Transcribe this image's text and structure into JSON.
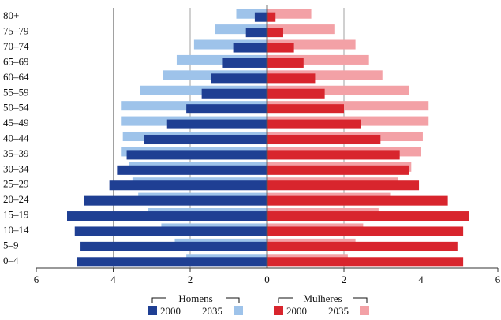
{
  "chart_data": {
    "type": "bar",
    "orientation": "horizontal",
    "categories": [
      "80+",
      "75–79",
      "70–74",
      "65–69",
      "60–64",
      "55–59",
      "50–54",
      "45–49",
      "40–44",
      "35–39",
      "30–34",
      "25–29",
      "20–24",
      "15–19",
      "10–14",
      "5–9",
      "0–4"
    ],
    "xlim": [
      -6,
      6
    ],
    "xticks": [
      6,
      4,
      2,
      0,
      2,
      4,
      6
    ],
    "grid": true,
    "legend_placement": "bottom",
    "groups": [
      {
        "name": "Homens",
        "side": "left",
        "series": [
          {
            "name": "2000",
            "color": "#1f3f93",
            "values": [
              0.32,
              0.55,
              0.88,
              1.15,
              1.45,
              1.7,
              2.1,
              2.6,
              3.2,
              3.65,
              3.9,
              4.1,
              4.75,
              5.2,
              5.0,
              4.85,
              4.95
            ]
          },
          {
            "name": "2035",
            "color": "#9ec3ea",
            "values": [
              0.8,
              1.35,
              1.9,
              2.35,
              2.7,
              3.3,
              3.8,
              3.8,
              3.75,
              3.8,
              3.6,
              3.5,
              3.35,
              3.1,
              2.75,
              2.4,
              2.1
            ]
          }
        ]
      },
      {
        "name": "Mulheres",
        "side": "right",
        "series": [
          {
            "name": "2000",
            "color": "#d8252d",
            "values": [
              0.22,
              0.42,
              0.7,
              0.95,
              1.25,
              1.5,
              2.0,
              2.45,
              2.95,
              3.45,
              3.7,
              3.95,
              4.7,
              5.25,
              5.1,
              4.95,
              5.1
            ]
          },
          {
            "name": "2035",
            "color": "#f3a1a6",
            "values": [
              1.15,
              1.75,
              2.3,
              2.65,
              3.0,
              3.7,
              4.2,
              4.2,
              4.05,
              4.0,
              3.75,
              3.4,
              3.2,
              2.9,
              2.5,
              2.3,
              2.1
            ]
          }
        ]
      }
    ]
  }
}
